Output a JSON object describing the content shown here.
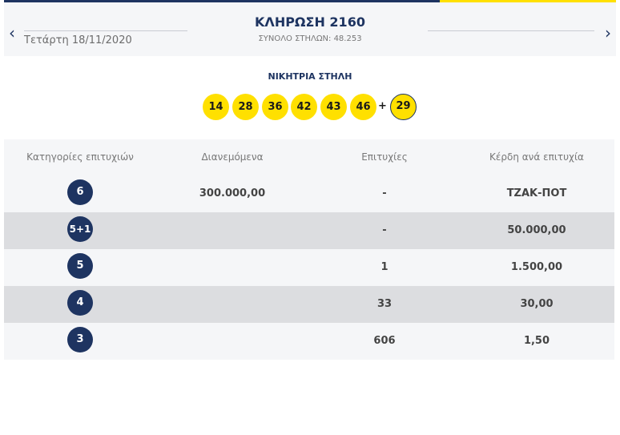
{
  "header": {
    "prev_icon": "chevron-left-icon",
    "next_icon": "chevron-right-icon",
    "date": "Τετάρτη 18/11/2020",
    "title": "ΚΛΗΡΩΣΗ 2160",
    "subtitle": "ΣΥΝΟΛΟ ΣΤΗΛΩΝ: 48.253"
  },
  "winning": {
    "label": "ΝΙΚΗΤΡΙΑ ΣΤΗΛΗ",
    "numbers": [
      "14",
      "28",
      "36",
      "42",
      "43",
      "46"
    ],
    "plus": "+",
    "bonus": "29"
  },
  "table": {
    "headers": [
      "Κατηγορίες επιτυχιών",
      "Διανεμόμενα",
      "Επιτυχίες",
      "Κέρδη ανά επιτυχία"
    ],
    "rows": [
      {
        "category": "6",
        "distributed": "300.000,00",
        "winners": "-",
        "prize": "ΤΖΑΚ-ΠΟΤ"
      },
      {
        "category": "5+1",
        "distributed": "",
        "winners": "-",
        "prize": "50.000,00"
      },
      {
        "category": "5",
        "distributed": "",
        "winners": "1",
        "prize": "1.500,00"
      },
      {
        "category": "4",
        "distributed": "",
        "winners": "33",
        "prize": "30,00"
      },
      {
        "category": "3",
        "distributed": "",
        "winners": "606",
        "prize": "1,50"
      }
    ]
  },
  "colors": {
    "navy": "#1e3461",
    "yellow": "#ffe000"
  }
}
